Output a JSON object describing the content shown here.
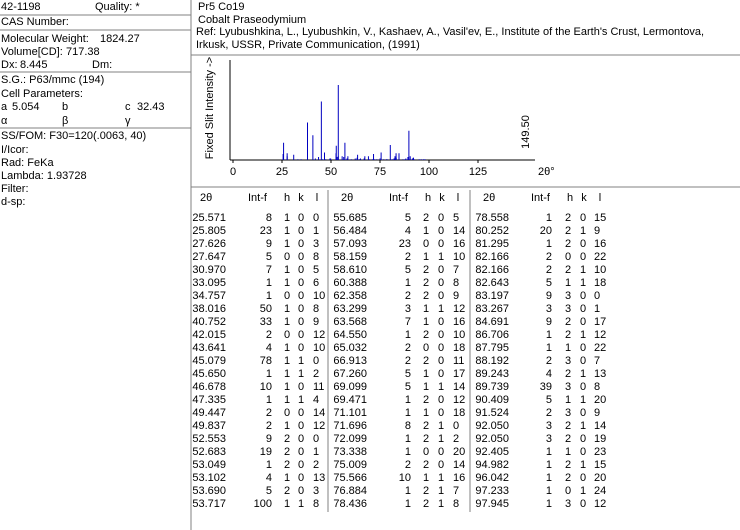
{
  "left": {
    "pdf_number": "42-1198",
    "quality": "Quality: *",
    "cas": "CAS Number:",
    "mw_label": "Molecular Weight:",
    "mw": "1824.27",
    "vol_label": "Volume[CD]:",
    "vol": "717.38",
    "dx_label": "Dx:",
    "dx": "8.445",
    "dm_label": "Dm:",
    "sg": "S.G.: P63/mmc (194)",
    "cell": "Cell Parameters:",
    "a_label": "a",
    "a": "5.054",
    "b_label": "b",
    "c_label": "c",
    "c": "32.43",
    "alpha": "α",
    "beta": "β",
    "gamma": "γ",
    "fom": "SS/FOM: F30=120(.0063, 40)",
    "icor": "I/Icor:",
    "rad": "Rad: FeKa",
    "lambda": "Lambda: 1.93728",
    "filter": "Filter:",
    "dsp": "d-sp:"
  },
  "header": {
    "formula": "Pr5 Co19",
    "name": "Cobalt Praseodymium",
    "ref": "Ref: Lyubushkina, L., Lyubushkin, V., Kashaev, A., Vasil'ev, E., Institute of the Earth's Crust, Lermontova, Irkusk, USSR, Private Communication, (1991)"
  },
  "pattern": {
    "y_label": "Fixed Slit Intensity ->",
    "x_label": "2θ°",
    "xlim": [
      0,
      152
    ],
    "ylim": [
      0,
      100
    ],
    "xticks": [
      0,
      25,
      50,
      75,
      100,
      125
    ],
    "max_label": "149.50",
    "color": "#0000c0"
  },
  "table": {
    "headers": [
      "2θ",
      "Int-f",
      "h",
      "k",
      "l"
    ],
    "columns": [
      {
        "rows": [
          [
            "25.571",
            8,
            1,
            0,
            0
          ],
          [
            "25.805",
            23,
            1,
            0,
            1
          ],
          [
            "27.626",
            9,
            1,
            0,
            3
          ],
          [
            "27.647",
            5,
            0,
            0,
            8
          ],
          [
            "30.970",
            7,
            1,
            0,
            5
          ],
          [
            "33.095",
            1,
            1,
            0,
            6
          ],
          [
            "34.757",
            1,
            0,
            0,
            10
          ],
          [
            "38.016",
            50,
            1,
            0,
            8
          ],
          [
            "40.752",
            33,
            1,
            0,
            9
          ],
          [
            "42.015",
            2,
            0,
            0,
            12
          ],
          [
            "43.641",
            4,
            1,
            0,
            10
          ],
          [
            "45.079",
            78,
            1,
            1,
            0
          ],
          [
            "45.650",
            1,
            1,
            1,
            2
          ],
          [
            "46.678",
            10,
            1,
            0,
            11
          ],
          [
            "47.335",
            1,
            1,
            1,
            4
          ],
          [
            "49.447",
            2,
            0,
            0,
            14
          ],
          [
            "49.837",
            2,
            1,
            0,
            12
          ],
          [
            "52.553",
            9,
            2,
            0,
            0
          ],
          [
            "52.683",
            19,
            2,
            0,
            1
          ],
          [
            "53.049",
            1,
            2,
            0,
            2
          ],
          [
            "53.102",
            4,
            1,
            0,
            13
          ],
          [
            "53.690",
            5,
            2,
            0,
            3
          ],
          [
            "53.717",
            100,
            1,
            1,
            8
          ]
        ]
      },
      {
        "rows": [
          [
            "55.685",
            5,
            2,
            0,
            5
          ],
          [
            "56.484",
            4,
            1,
            0,
            14
          ],
          [
            "57.093",
            23,
            0,
            0,
            16
          ],
          [
            "58.159",
            2,
            1,
            1,
            10
          ],
          [
            "58.610",
            5,
            2,
            0,
            7
          ],
          [
            "60.388",
            1,
            2,
            0,
            8
          ],
          [
            "62.358",
            2,
            2,
            0,
            9
          ],
          [
            "63.299",
            3,
            1,
            1,
            12
          ],
          [
            "63.568",
            7,
            1,
            0,
            16
          ],
          [
            "64.550",
            1,
            2,
            0,
            10
          ],
          [
            "65.032",
            2,
            0,
            0,
            18
          ],
          [
            "66.913",
            2,
            2,
            0,
            11
          ],
          [
            "67.260",
            5,
            1,
            0,
            17
          ],
          [
            "69.099",
            5,
            1,
            1,
            14
          ],
          [
            "69.471",
            1,
            2,
            0,
            12
          ],
          [
            "71.101",
            1,
            1,
            0,
            18
          ],
          [
            "71.696",
            8,
            2,
            1,
            0
          ],
          [
            "72.099",
            1,
            2,
            1,
            2
          ],
          [
            "73.338",
            1,
            0,
            0,
            20
          ],
          [
            "75.009",
            2,
            2,
            0,
            14
          ],
          [
            "75.566",
            10,
            1,
            1,
            16
          ],
          [
            "76.884",
            1,
            2,
            1,
            7
          ],
          [
            "78.436",
            1,
            2,
            1,
            8
          ]
        ]
      },
      {
        "rows": [
          [
            "78.558",
            1,
            2,
            0,
            15
          ],
          [
            "80.252",
            20,
            2,
            1,
            9
          ],
          [
            "81.295",
            1,
            2,
            0,
            16
          ],
          [
            "82.166",
            2,
            0,
            0,
            22
          ],
          [
            "82.166",
            2,
            2,
            1,
            10
          ],
          [
            "82.643",
            5,
            1,
            1,
            18
          ],
          [
            "83.197",
            9,
            3,
            0,
            0
          ],
          [
            "83.267",
            3,
            3,
            0,
            1
          ],
          [
            "84.691",
            9,
            2,
            0,
            17
          ],
          [
            "86.706",
            1,
            2,
            1,
            12
          ],
          [
            "87.795",
            1,
            1,
            0,
            22
          ],
          [
            "88.192",
            2,
            3,
            0,
            7
          ],
          [
            "89.243",
            4,
            2,
            1,
            13
          ],
          [
            "89.739",
            39,
            3,
            0,
            8
          ],
          [
            "90.409",
            5,
            1,
            1,
            20
          ],
          [
            "91.524",
            2,
            3,
            0,
            9
          ],
          [
            "92.050",
            3,
            2,
            1,
            14
          ],
          [
            "92.050",
            3,
            2,
            0,
            19
          ],
          [
            "92.405",
            1,
            1,
            0,
            23
          ],
          [
            "94.982",
            1,
            2,
            1,
            15
          ],
          [
            "96.042",
            1,
            2,
            0,
            20
          ],
          [
            "97.233",
            1,
            0,
            1,
            24
          ],
          [
            "97.945",
            1,
            3,
            0,
            12
          ]
        ]
      }
    ]
  }
}
